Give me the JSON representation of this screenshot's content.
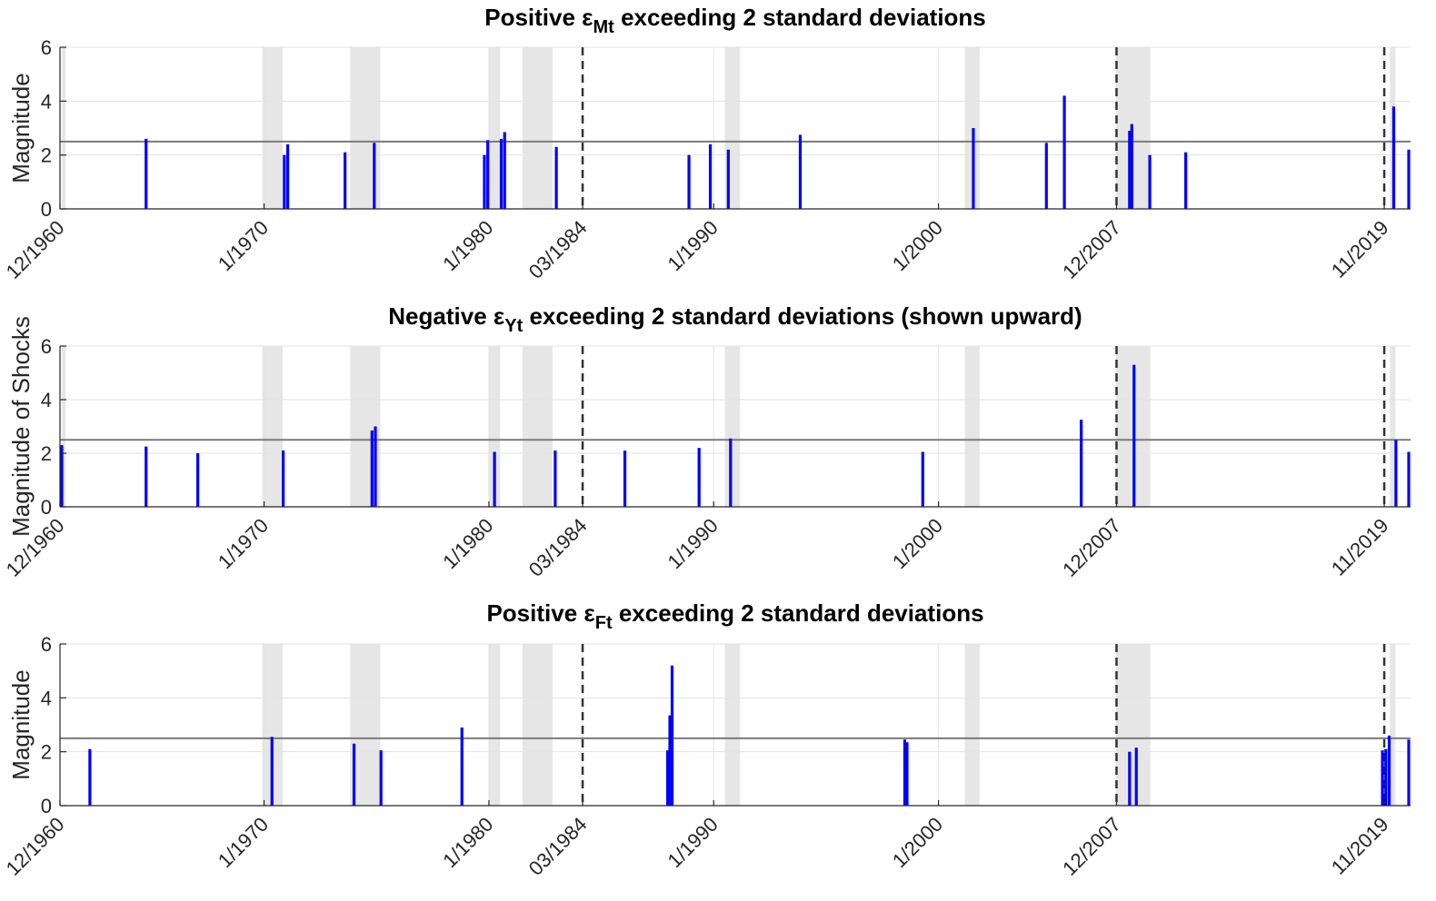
{
  "chart_data": [
    {
      "type": "bar",
      "title_parts": [
        "Positive ε",
        "Mt",
        " exceeding 2 standard deviations"
      ],
      "ylabel": "Magnitude",
      "xlim": [
        1960.92,
        2021.0
      ],
      "ylim": [
        0,
        6
      ],
      "yticks": [
        0,
        2,
        4,
        6
      ],
      "threshold": 2.5,
      "grid": "on",
      "xtick_labels": [
        "12/1960",
        "1/1970",
        "1/1980",
        "03/1984",
        "1/1990",
        "1/2000",
        "12/2007",
        "11/2019"
      ],
      "xtick_dates": [
        1960.92,
        1970.0,
        1980.0,
        1984.17,
        1990.0,
        2000.0,
        2007.92,
        2019.83
      ],
      "break_dates": [
        1984.17,
        2007.92,
        2019.83
      ],
      "recessions": [
        [
          1961.0,
          1961.17
        ],
        [
          1969.92,
          1970.83
        ],
        [
          1973.83,
          1975.17
        ],
        [
          1980.0,
          1980.5
        ],
        [
          1981.5,
          1982.83
        ],
        [
          1990.5,
          1991.17
        ],
        [
          2001.17,
          2001.83
        ],
        [
          2007.92,
          2009.42
        ],
        [
          2020.08,
          2020.33
        ]
      ],
      "shocks": {
        "x": [
          1964.75,
          1970.9,
          1971.05,
          1973.6,
          1974.9,
          1979.8,
          1979.95,
          1980.55,
          1980.7,
          1983.0,
          1988.9,
          1989.85,
          1990.65,
          1993.85,
          2001.55,
          2004.8,
          2005.6,
          2008.5,
          2008.6,
          2009.4,
          2011.0,
          2020.25,
          2021.0
        ],
        "y": [
          2.6,
          2.0,
          2.4,
          2.1,
          2.45,
          2.0,
          2.55,
          2.6,
          2.85,
          2.3,
          2.0,
          2.4,
          2.2,
          2.75,
          3.0,
          2.45,
          4.2,
          2.9,
          3.15,
          2.0,
          2.1,
          3.8,
          2.2
        ]
      }
    },
    {
      "type": "bar",
      "title_parts": [
        "Negative ε",
        "Yt",
        " exceeding 2 standard deviations (shown upward)"
      ],
      "ylabel": "Magnitude of Shocks",
      "xlim": [
        1960.92,
        2021.0
      ],
      "ylim": [
        0,
        6
      ],
      "yticks": [
        0,
        2,
        4,
        6
      ],
      "threshold": 2.5,
      "grid": "on",
      "xtick_labels": [
        "12/1960",
        "1/1970",
        "1/1980",
        "03/1984",
        "1/1990",
        "1/2000",
        "12/2007",
        "11/2019"
      ],
      "xtick_dates": [
        1960.92,
        1970.0,
        1980.0,
        1984.17,
        1990.0,
        2000.0,
        2007.92,
        2019.83
      ],
      "break_dates": [
        1984.17,
        2007.92,
        2019.83
      ],
      "recessions": [
        [
          1961.0,
          1961.17
        ],
        [
          1969.92,
          1970.83
        ],
        [
          1973.83,
          1975.17
        ],
        [
          1980.0,
          1980.5
        ],
        [
          1981.5,
          1982.83
        ],
        [
          1990.5,
          1991.17
        ],
        [
          2001.17,
          2001.83
        ],
        [
          2007.92,
          2009.42
        ],
        [
          2020.08,
          2020.33
        ]
      ],
      "shocks": {
        "x": [
          1961.0,
          1964.75,
          1967.05,
          1970.85,
          1974.8,
          1974.95,
          1980.25,
          1982.95,
          1986.05,
          1989.35,
          1990.75,
          1999.3,
          2006.35,
          2008.7,
          2020.35,
          2021.0
        ],
        "y": [
          2.3,
          2.25,
          2.0,
          2.1,
          2.85,
          3.0,
          2.05,
          2.1,
          2.1,
          2.2,
          2.55,
          2.05,
          3.25,
          5.3,
          2.5,
          2.05
        ]
      }
    },
    {
      "type": "bar",
      "title_parts": [
        "Positive ε",
        "Ft",
        " exceeding 2 standard deviations"
      ],
      "ylabel": "Magnitude",
      "xlim": [
        1960.92,
        2021.0
      ],
      "ylim": [
        0,
        6
      ],
      "yticks": [
        0,
        2,
        4,
        6
      ],
      "threshold": 2.5,
      "grid": "on",
      "xtick_labels": [
        "12/1960",
        "1/1970",
        "1/1980",
        "03/1984",
        "1/1990",
        "1/2000",
        "12/2007",
        "11/2019"
      ],
      "xtick_dates": [
        1960.92,
        1970.0,
        1980.0,
        1984.17,
        1990.0,
        2000.0,
        2007.92,
        2019.83
      ],
      "break_dates": [
        1984.17,
        2007.92,
        2019.83
      ],
      "recessions": [
        [
          1969.92,
          1970.83
        ],
        [
          1973.83,
          1975.17
        ],
        [
          1980.0,
          1980.5
        ],
        [
          1981.5,
          1982.83
        ],
        [
          1990.5,
          1991.17
        ],
        [
          2001.17,
          2001.83
        ],
        [
          2007.92,
          2009.42
        ],
        [
          2020.08,
          2020.33
        ]
      ],
      "shocks": {
        "x": [
          1962.25,
          1970.35,
          1974.0,
          1975.2,
          1978.8,
          1987.95,
          1988.05,
          1988.15,
          1998.5,
          1998.6,
          2008.5,
          2008.8,
          2019.75,
          2019.9,
          2020.05,
          2021.0
        ],
        "y": [
          2.1,
          2.55,
          2.3,
          2.05,
          2.9,
          2.05,
          3.35,
          5.2,
          2.45,
          2.35,
          2.0,
          2.15,
          2.05,
          2.1,
          2.6,
          2.45
        ]
      }
    }
  ]
}
